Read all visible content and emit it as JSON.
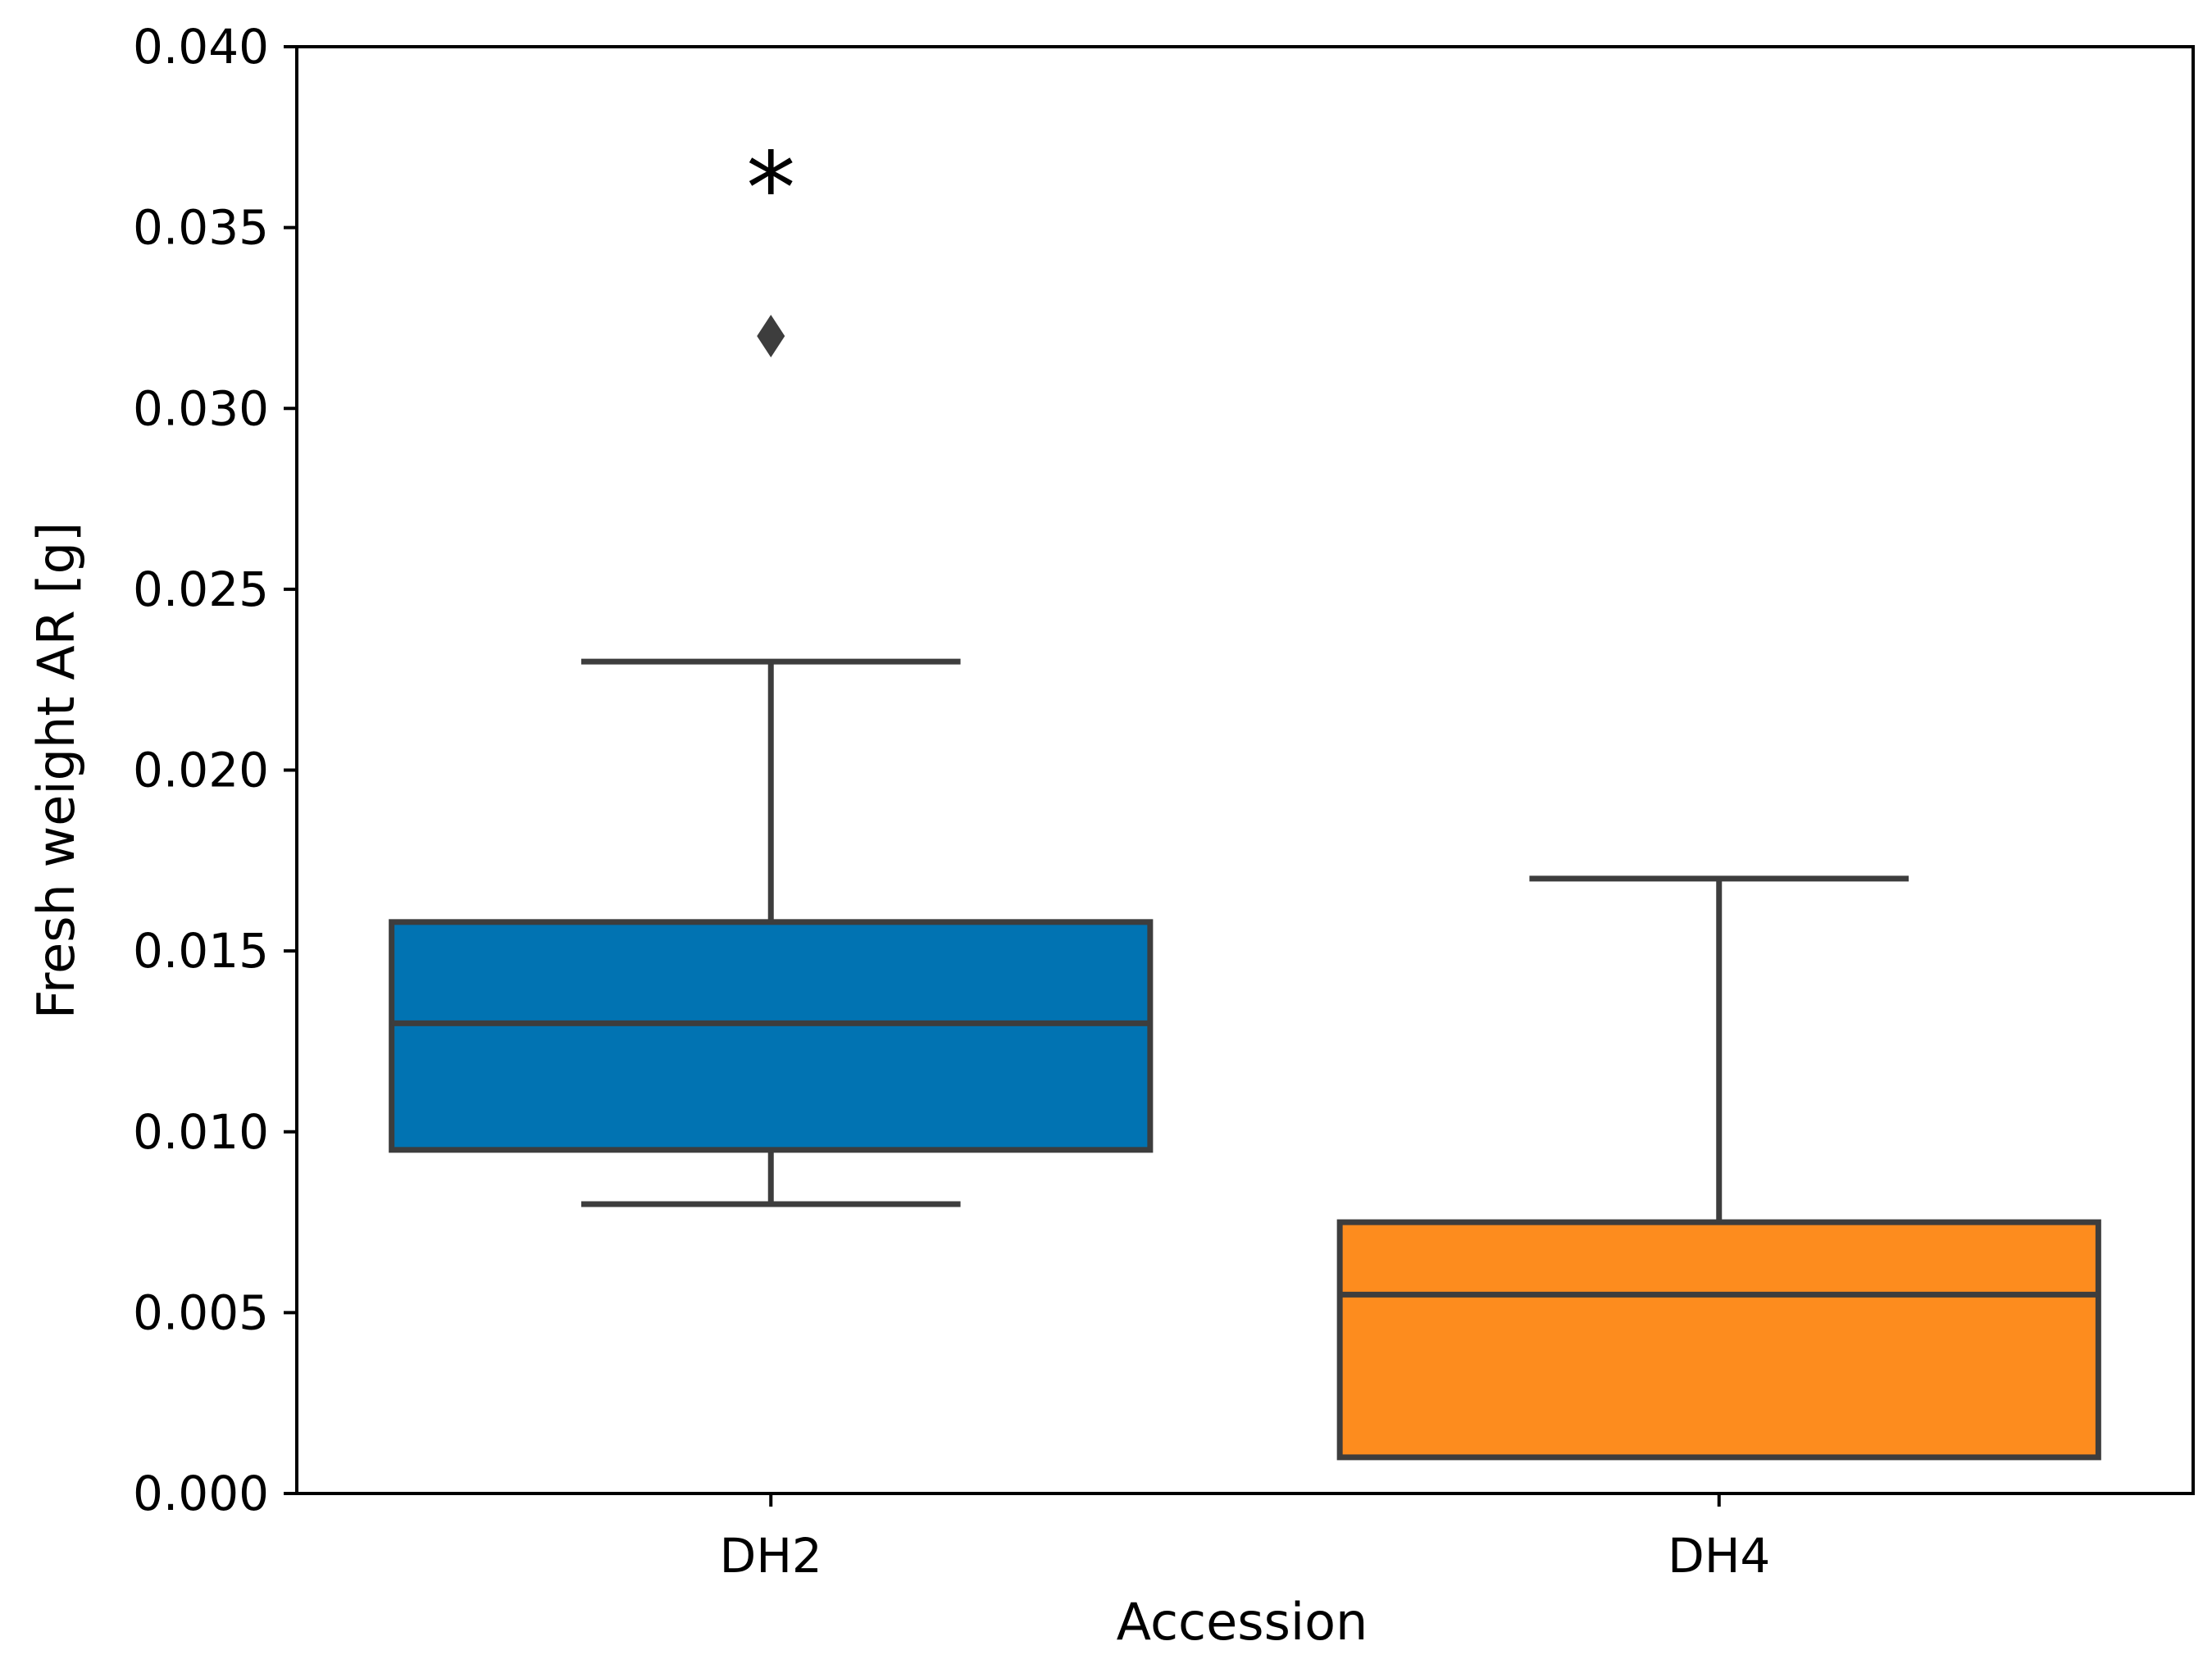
{
  "chart_data": {
    "type": "box",
    "title": "",
    "xlabel": "Accession",
    "ylabel": "Fresh weight AR [g]",
    "ylim": [
      0.0,
      0.04
    ],
    "yticks": [
      0.0,
      0.005,
      0.01,
      0.015,
      0.02,
      0.025,
      0.03,
      0.035,
      0.04
    ],
    "ytick_labels": [
      "0.000",
      "0.005",
      "0.010",
      "0.015",
      "0.020",
      "0.025",
      "0.030",
      "0.035",
      "0.040"
    ],
    "categories": [
      "DH2",
      "DH4"
    ],
    "boxes": [
      {
        "category": "DH2",
        "whisker_low": 0.008,
        "q1": 0.0095,
        "median": 0.013,
        "q3": 0.0158,
        "whisker_high": 0.023,
        "outliers": [
          0.032
        ],
        "color": "#0173b2"
      },
      {
        "category": "DH4",
        "whisker_low": 0.001,
        "q1": 0.001,
        "median": 0.0055,
        "q3": 0.0075,
        "whisker_high": 0.017,
        "outliers": [],
        "color": "#fd8c1e"
      }
    ],
    "annotations": [
      {
        "text": "*",
        "category": "DH2",
        "y": 0.0365
      }
    ],
    "grid": false,
    "legend": "none"
  },
  "colors": {
    "edge": "#3d3d3d",
    "axis": "#000000"
  }
}
